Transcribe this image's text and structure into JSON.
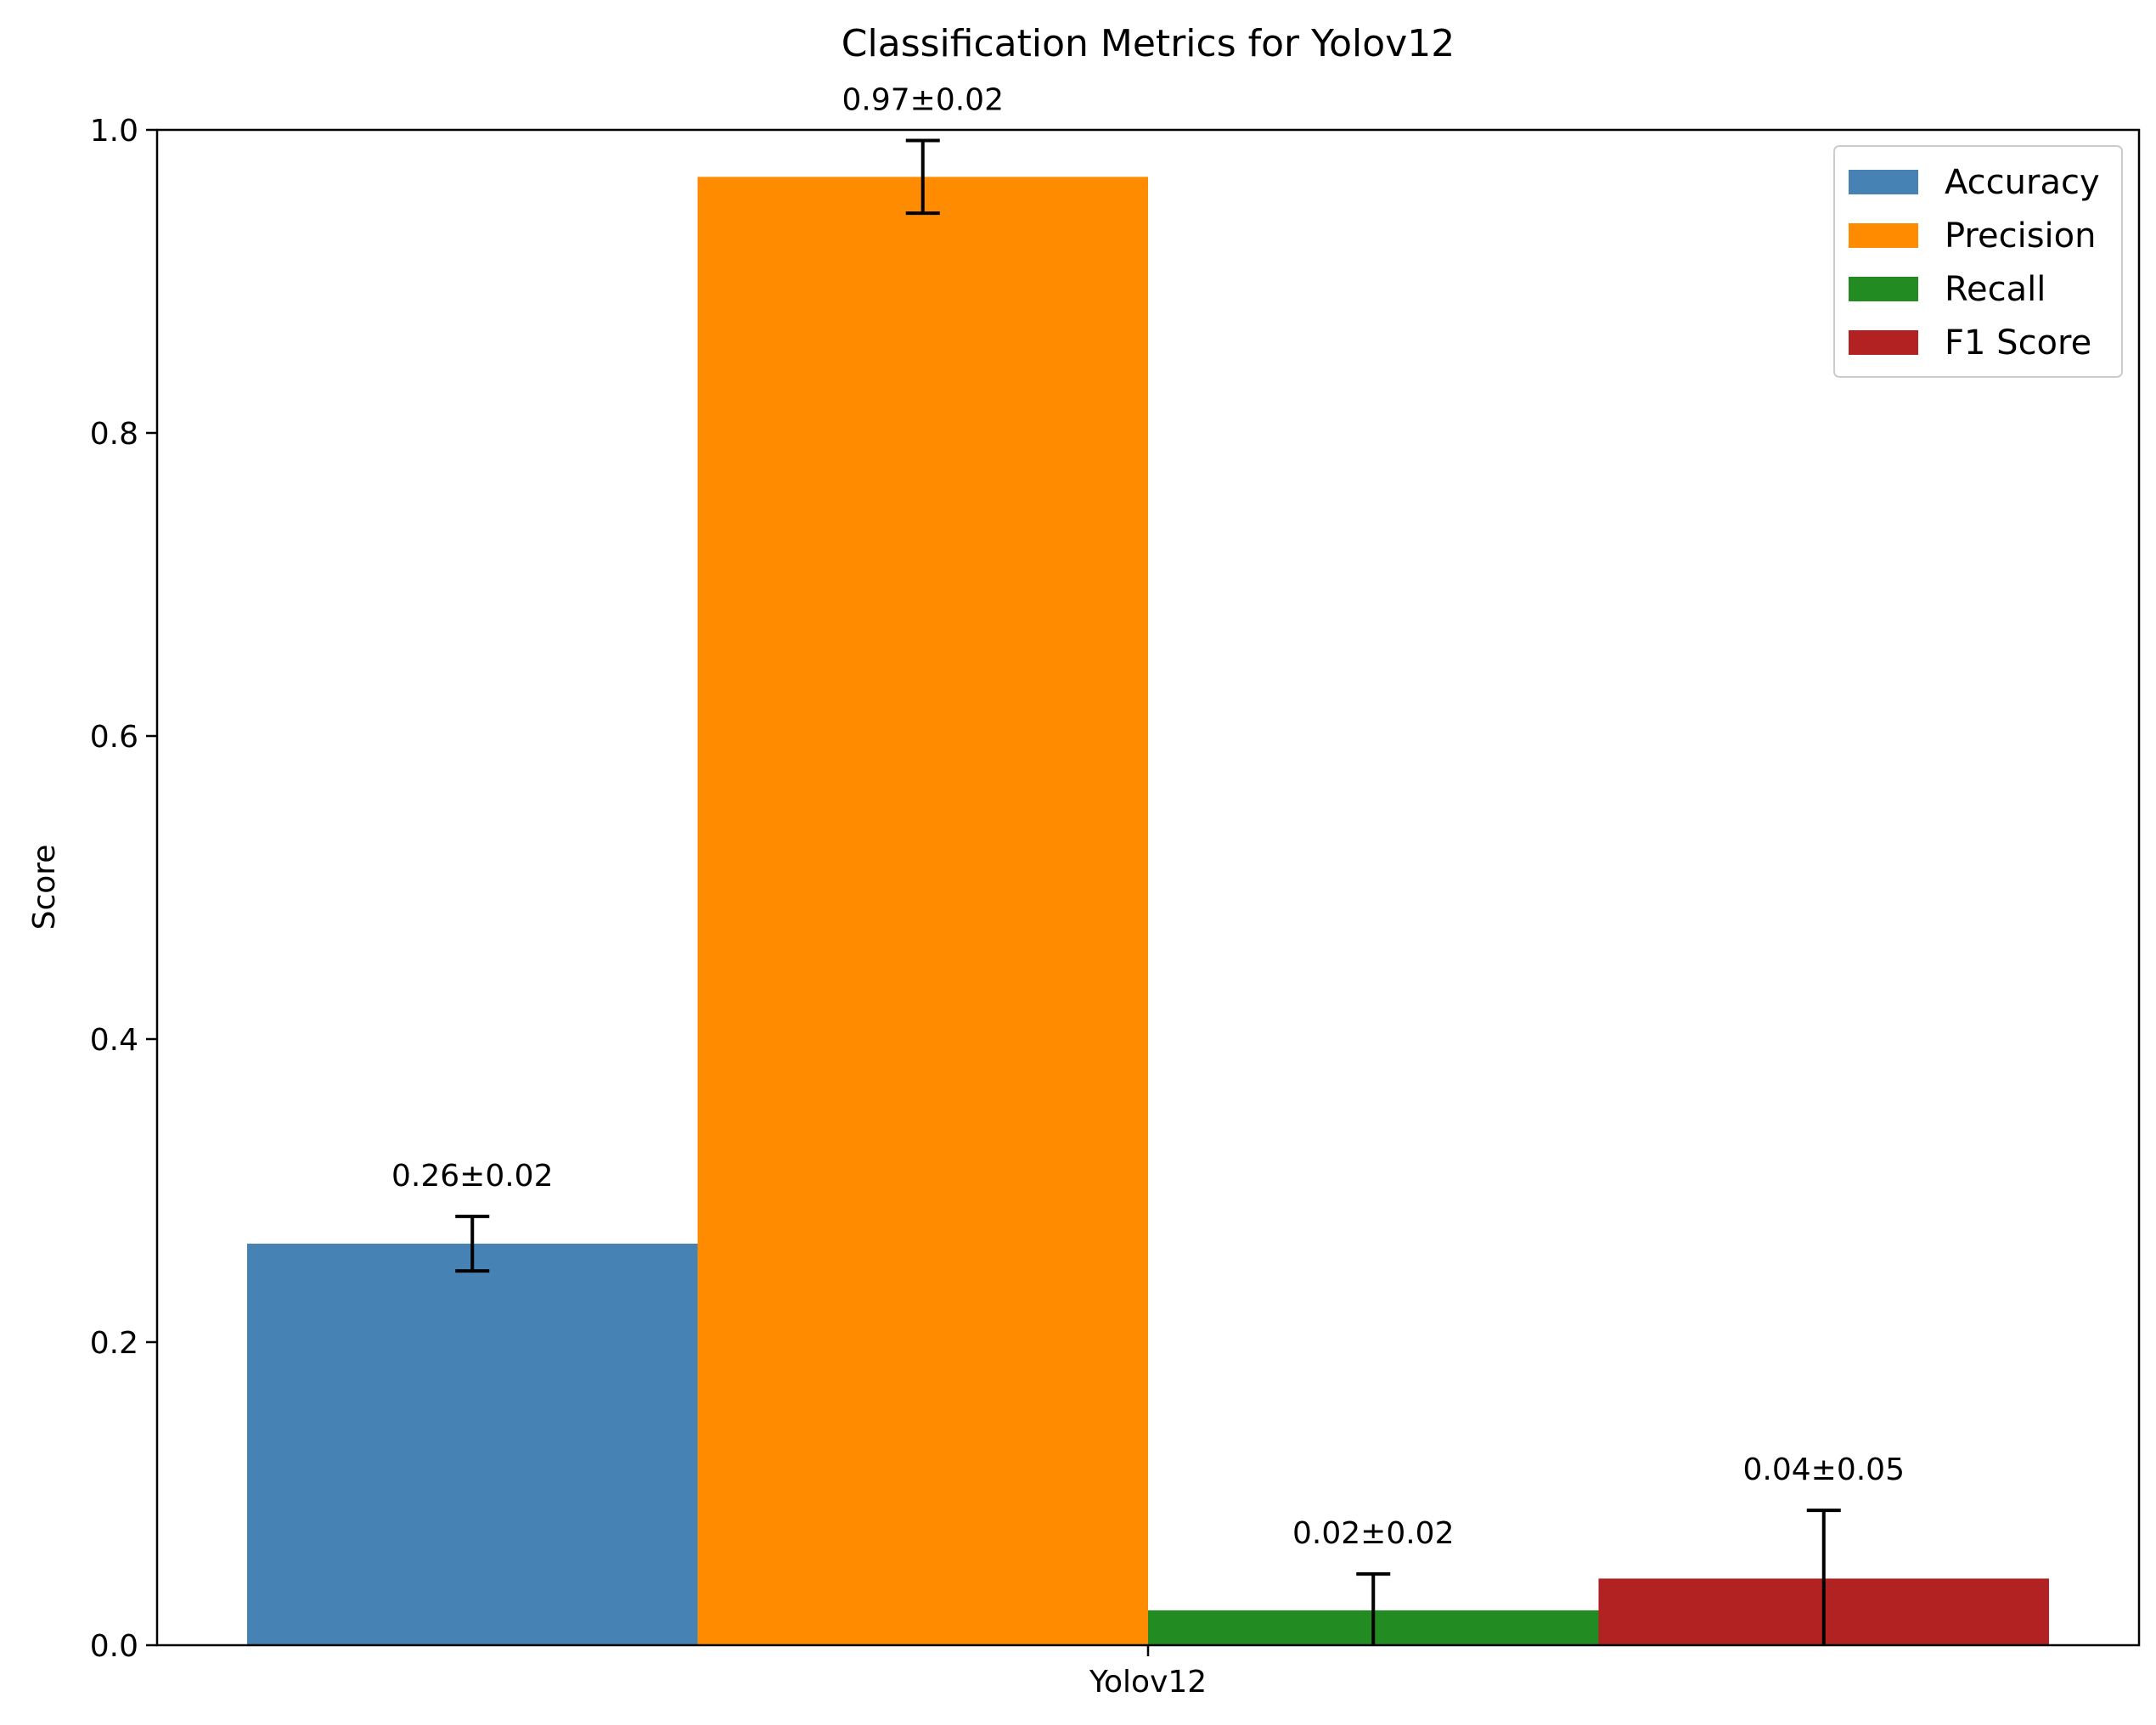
{
  "chart_data": {
    "type": "bar",
    "title": "Classification Metrics for Yolov12",
    "xlabel": "",
    "ylabel": "Score",
    "categories": [
      "Yolov12"
    ],
    "ylim": [
      0,
      1.0
    ],
    "yticks": [
      "0.0",
      "0.2",
      "0.4",
      "0.6",
      "0.8",
      "1.0"
    ],
    "grid": false,
    "legend_position": "top-right",
    "series": [
      {
        "name": "Accuracy",
        "values": [
          0.265
        ],
        "error": [
          0.018
        ],
        "label": "0.26±0.02",
        "color": "#4682b4",
        "error_style": "symmetric"
      },
      {
        "name": "Precision",
        "values": [
          0.969
        ],
        "error": [
          0.024
        ],
        "label": "0.97±0.02",
        "color": "#ff8c00",
        "error_style": "symmetric"
      },
      {
        "name": "Recall",
        "values": [
          0.023
        ],
        "error": [
          0.024
        ],
        "label": "0.02±0.02",
        "color": "#228b22",
        "error_style": "clipped"
      },
      {
        "name": "F1 Score",
        "values": [
          0.044
        ],
        "error": [
          0.045
        ],
        "label": "0.04±0.05",
        "color": "#b22222",
        "error_style": "clipped"
      }
    ]
  }
}
